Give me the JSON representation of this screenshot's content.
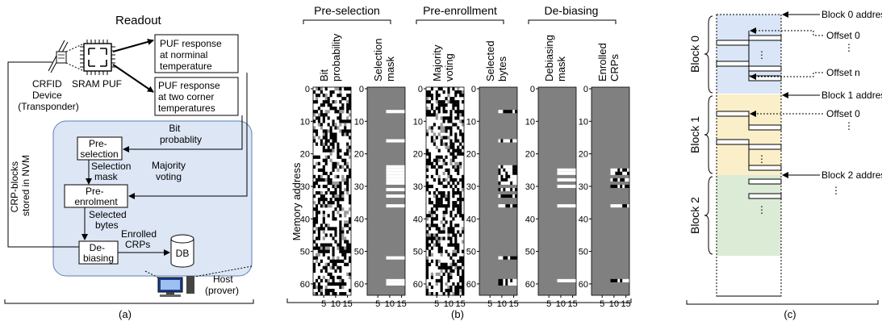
{
  "panel_a": {
    "readout": "Readout",
    "puf_nominal": [
      "PUF response",
      "at norminal",
      "temperature"
    ],
    "puf_corner": [
      "PUF response",
      "at two corner",
      "temperatures"
    ],
    "crfid": [
      "CRFID",
      "Device",
      "(Transponder)"
    ],
    "sram_puf": "SRAM PUF",
    "crp_blocks": [
      "CRP-blocks",
      "stored in NVM"
    ],
    "bit_prob": [
      "Bit",
      "probablity"
    ],
    "preselection": [
      "Pre-",
      "selection"
    ],
    "selection_mask": [
      "Selection",
      "mask"
    ],
    "majority_voting": [
      "Majority",
      "voting"
    ],
    "preenrolment": [
      "Pre-",
      "enrolment"
    ],
    "selected_bytes": [
      "Selected",
      "bytes"
    ],
    "enrolled_crps": [
      "Enrolled",
      "CRPs"
    ],
    "debiasing": [
      "De-",
      "biasing"
    ],
    "db": "DB",
    "host": [
      "Host",
      "(prover)"
    ],
    "caption": "(a)"
  },
  "panel_b": {
    "groups": [
      "Pre-selection",
      "Pre-enrollment",
      "De-biasing"
    ],
    "columns": [
      {
        "title": [
          "Bit",
          "probability"
        ],
        "kind": "random",
        "seed": 7
      },
      {
        "title": [
          "Selection",
          "mask"
        ],
        "kind": "mask",
        "white_rows": [
          7,
          16,
          24,
          25,
          26,
          27,
          28,
          29,
          31,
          33,
          36,
          52,
          59,
          60
        ]
      },
      {
        "title": [
          "Majority",
          "voting"
        ],
        "kind": "random",
        "seed": 19
      },
      {
        "title": [
          "Selected",
          "bytes"
        ],
        "kind": "selected",
        "seed": 23,
        "rows": [
          7,
          16,
          24,
          25,
          26,
          27,
          28,
          29,
          31,
          33,
          36,
          52,
          59,
          60
        ]
      },
      {
        "title": [
          "Debiasing",
          "mask"
        ],
        "kind": "mask",
        "white_rows": [
          25,
          26,
          28,
          30,
          36,
          59
        ]
      },
      {
        "title": [
          "Enrolled",
          "CRPs"
        ],
        "kind": "selected",
        "seed": 31,
        "rows": [
          25,
          26,
          28,
          30,
          36,
          59
        ]
      }
    ],
    "ylabel": "Memory address",
    "yticks": [
      0,
      10,
      20,
      30,
      40,
      50,
      60
    ],
    "xticks": [
      5,
      10,
      15
    ],
    "caption": "(b)"
  },
  "panel_c": {
    "blocks": [
      {
        "label": "Block 0",
        "color": "#dae6f7"
      },
      {
        "label": "Block 1",
        "color": "#fbefc9"
      },
      {
        "label": "Block 2",
        "color": "#dcebd5"
      }
    ],
    "annotations": {
      "block0_address": "Block 0 address",
      "offset0_a": "Offset 0",
      "offset_n": "Offset n",
      "block1_address": "Block 1 address",
      "offset0_b": "Offset 0",
      "block2_address": "Block 2 address",
      "ellipsis": "⋮"
    },
    "caption": "(c)"
  }
}
